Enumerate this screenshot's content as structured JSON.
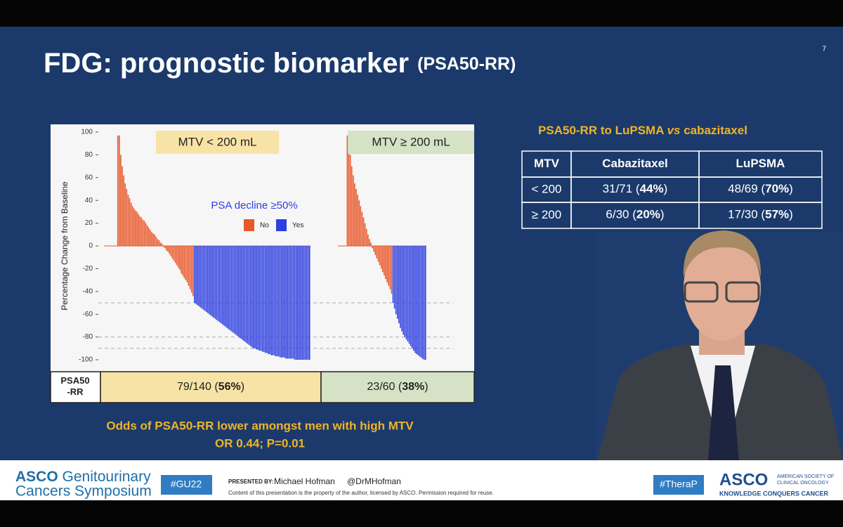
{
  "slide": {
    "title": "FDG: prognostic biomarker",
    "title_suffix": "(PSA50-RR)",
    "slide_number": "7",
    "odds_lines": [
      "Odds of PSA50-RR lower amongst men with high MTV",
      "OR 0.44; P=0.01"
    ],
    "side_title": [
      "PSA50-RR to LuPSMA ",
      "vs",
      " cabazitaxel"
    ],
    "side_table": {
      "header": [
        "MTV",
        "Cabazitaxel",
        "LuPSMA"
      ],
      "rows": [
        [
          "< 200",
          [
            "31/71 (",
            "44%",
            ")"
          ],
          [
            "48/69 (",
            "70%",
            ")"
          ]
        ],
        [
          "≥ 200",
          [
            "6/30 (",
            "20%",
            ")"
          ],
          [
            "17/30 (",
            "57%",
            ")"
          ]
        ]
      ]
    },
    "footer": {
      "brand": "ASCO",
      "brand_rest": " Genitourinary",
      "brand_line2": "Cancers Symposium",
      "hashtag": "#GU22",
      "presented_by": "PRESENTED BY:",
      "presenter": "Michael Hofman",
      "handle": "@DrMHofman",
      "disclaimer": "Content of this presentation is the property of the author, licensed by ASCO. Permission required for reuse.",
      "hashtag2": "#TheraP",
      "asco": "ASCO",
      "asco_sub1": "AMERICAN SOCIETY OF",
      "asco_sub2": "CLINICAL ONCOLOGY",
      "tagline": "KNOWLEDGE CONQUERS CANCER"
    }
  },
  "chart_data": {
    "type": "bar",
    "ylabel": "Percentage Change from Baseline",
    "ylim": [
      -100,
      100
    ],
    "yticks": [
      100,
      80,
      60,
      40,
      20,
      0,
      -20,
      -40,
      -60,
      -80,
      -100
    ],
    "reference_lines": [
      -50,
      -80,
      -90
    ],
    "legend_title": "PSA decline ≥50%",
    "series": [
      {
        "name": "No",
        "color": "#e8582a"
      },
      {
        "name": "Yes",
        "color": "#2d3fe0"
      }
    ],
    "row_label": "PSA50 -RR",
    "panels": [
      {
        "label": "MTV < 200 mL",
        "color": "#f8e3a6",
        "result": [
          "79/140 (",
          "56%",
          ")"
        ],
        "no": [
          0,
          0,
          0,
          0,
          0,
          0,
          0,
          0,
          0,
          97,
          97,
          80,
          70,
          62,
          55,
          50,
          45,
          42,
          38,
          35,
          33,
          31,
          30,
          28,
          26,
          25,
          23,
          22,
          20,
          18,
          16,
          14,
          12,
          11,
          10,
          8,
          6,
          5,
          3,
          2,
          -1,
          -2,
          -4,
          -5,
          -7,
          -9,
          -11,
          -13,
          -15,
          -17,
          -19,
          -21,
          -24,
          -26,
          -28,
          -30,
          -32,
          -35,
          -38,
          -41,
          -44
        ],
        "yes": [
          -50,
          -51,
          -52,
          -53,
          -54,
          -55,
          -56,
          -57,
          -58,
          -59,
          -60,
          -61,
          -62,
          -63,
          -64,
          -65,
          -66,
          -67,
          -68,
          -69,
          -70,
          -71,
          -72,
          -73,
          -74,
          -75,
          -76,
          -77,
          -78,
          -79,
          -80,
          -81,
          -82,
          -83,
          -84,
          -85,
          -86,
          -87,
          -88,
          -89,
          -90,
          -90,
          -91,
          -91,
          -92,
          -92,
          -93,
          -93,
          -94,
          -94,
          -95,
          -95,
          -96,
          -96,
          -96,
          -97,
          -97,
          -97,
          -98,
          -98,
          -98,
          -98,
          -99,
          -99,
          -99,
          -99,
          -99,
          -99,
          -100,
          -100,
          -100,
          -100,
          -100,
          -100,
          -100,
          -100,
          -100,
          -100,
          -100
        ]
      },
      {
        "label": "MTV ≥ 200 mL",
        "color": "#d5e2c5",
        "result": [
          "23/60 (",
          "38%",
          ")"
        ],
        "no": [
          0,
          0,
          0,
          0,
          0,
          0,
          97,
          90,
          80,
          70,
          62,
          55,
          50,
          45,
          40,
          35,
          30,
          25,
          20,
          15,
          10,
          6,
          3,
          -2,
          -5,
          -8,
          -11,
          -14,
          -17,
          -20,
          -23,
          -26,
          -29,
          -32,
          -35,
          -38,
          -42
        ],
        "yes": [
          -50,
          -55,
          -60,
          -64,
          -68,
          -72,
          -75,
          -78,
          -80,
          -82,
          -84,
          -86,
          -88,
          -90,
          -92,
          -94,
          -95,
          -96,
          -97,
          -98,
          -99,
          -100,
          -100
        ]
      }
    ]
  }
}
